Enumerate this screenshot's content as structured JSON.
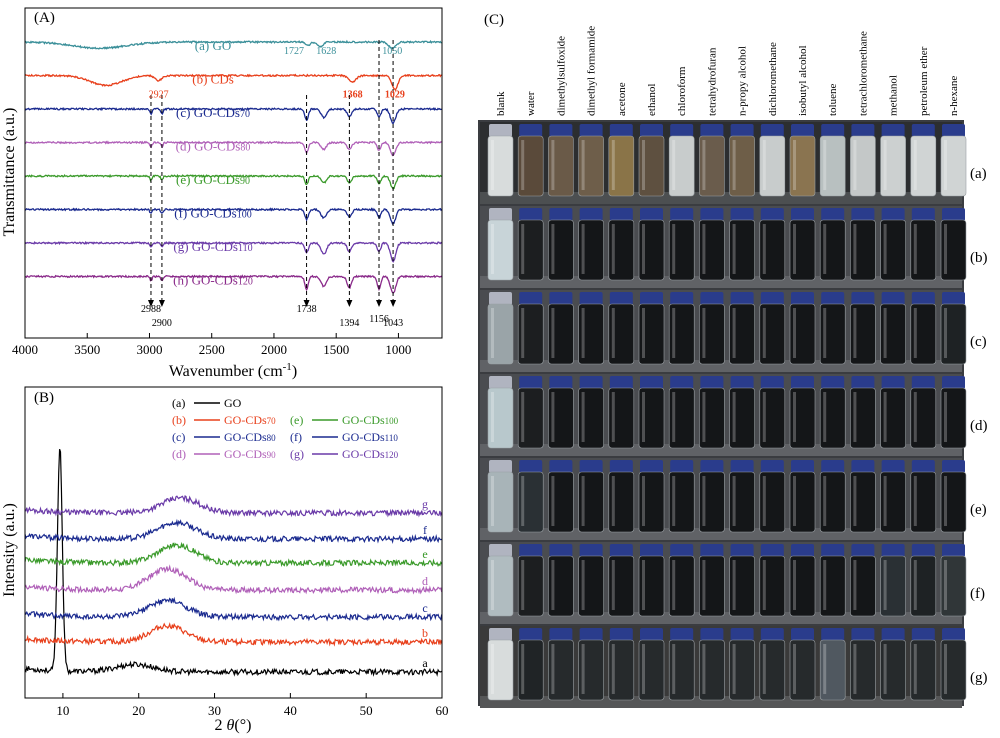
{
  "panel_labels": {
    "a": "(A)",
    "b": "(B)",
    "c": "(C)"
  },
  "chart_data": [
    {
      "type": "line",
      "panel": "(A)",
      "xlabel": "Wavenumber (cm",
      "xlabel_sup": "-1",
      "xlabel_close": ")",
      "ylabel": "Transmittance (a.u.)",
      "xlim": [
        4000,
        650
      ],
      "xticks": [
        "4000",
        "3500",
        "3000",
        "2500",
        "2000",
        "1500",
        "1000"
      ],
      "xtick_values": [
        4000,
        3500,
        3000,
        2500,
        2000,
        1500,
        1000
      ],
      "series": [
        {
          "key": "a",
          "label_prefix": "(a) GO",
          "label_sub": "",
          "color": "#3a8f99",
          "baseline_rank": 0,
          "bands": [
            {
              "wn": 3400,
              "depth": 0.45,
              "width": 300
            },
            {
              "wn": 1727,
              "depth": 0.25,
              "width": 25
            },
            {
              "wn": 1628,
              "depth": 0.35,
              "width": 30
            },
            {
              "wn": 1050,
              "depth": 0.45,
              "width": 40
            }
          ]
        },
        {
          "key": "b",
          "label_prefix": "(b) CDs",
          "label_sub": "",
          "color": "#e8401c",
          "baseline_rank": 1,
          "bands": [
            {
              "wn": 3350,
              "depth": 0.7,
              "width": 180
            },
            {
              "wn": 2927,
              "depth": 0.35,
              "width": 40
            },
            {
              "wn": 1368,
              "depth": 0.45,
              "width": 40
            },
            {
              "wn": 1029,
              "depth": 1.0,
              "width": 35
            }
          ]
        },
        {
          "key": "c",
          "label_prefix": "(c) GO-CDs",
          "label_sub": "70",
          "color": "#1a2a8f",
          "baseline_rank": 2,
          "bands": [
            {
              "wn": 2988,
              "depth": 0.35,
              "width": 12
            },
            {
              "wn": 2900,
              "depth": 0.35,
              "width": 12
            },
            {
              "wn": 1738,
              "depth": 0.8,
              "width": 20
            },
            {
              "wn": 1600,
              "depth": 0.6,
              "width": 30
            },
            {
              "wn": 1394,
              "depth": 0.55,
              "width": 25
            },
            {
              "wn": 1156,
              "depth": 0.6,
              "width": 20
            },
            {
              "wn": 1043,
              "depth": 1.0,
              "width": 30
            }
          ]
        },
        {
          "key": "d",
          "label_prefix": "(d) GO-CDs",
          "label_sub": "80",
          "color": "#b060b8",
          "baseline_rank": 3,
          "bands": [
            {
              "wn": 2988,
              "depth": 0.3,
              "width": 12
            },
            {
              "wn": 2900,
              "depth": 0.3,
              "width": 12
            },
            {
              "wn": 1738,
              "depth": 0.7,
              "width": 20
            },
            {
              "wn": 1600,
              "depth": 0.5,
              "width": 30
            },
            {
              "wn": 1394,
              "depth": 0.5,
              "width": 25
            },
            {
              "wn": 1156,
              "depth": 0.55,
              "width": 20
            },
            {
              "wn": 1043,
              "depth": 0.95,
              "width": 30
            }
          ]
        },
        {
          "key": "e",
          "label_prefix": "(e) GO-CDs",
          "label_sub": "90",
          "color": "#3a9a2a",
          "baseline_rank": 4,
          "bands": [
            {
              "wn": 2988,
              "depth": 0.3,
              "width": 12
            },
            {
              "wn": 2900,
              "depth": 0.3,
              "width": 12
            },
            {
              "wn": 1738,
              "depth": 0.6,
              "width": 20
            },
            {
              "wn": 1600,
              "depth": 0.5,
              "width": 30
            },
            {
              "wn": 1394,
              "depth": 0.5,
              "width": 25
            },
            {
              "wn": 1156,
              "depth": 0.55,
              "width": 20
            },
            {
              "wn": 1043,
              "depth": 0.9,
              "width": 30
            }
          ]
        },
        {
          "key": "f",
          "label_prefix": "(f) GO-CDs",
          "label_sub": "100",
          "color": "#1a2a8f",
          "baseline_rank": 5,
          "bands": [
            {
              "wn": 2988,
              "depth": 0.3,
              "width": 12
            },
            {
              "wn": 2900,
              "depth": 0.3,
              "width": 12
            },
            {
              "wn": 1738,
              "depth": 0.7,
              "width": 20
            },
            {
              "wn": 1600,
              "depth": 0.6,
              "width": 30
            },
            {
              "wn": 1394,
              "depth": 0.55,
              "width": 25
            },
            {
              "wn": 1156,
              "depth": 0.6,
              "width": 20
            },
            {
              "wn": 1043,
              "depth": 1.0,
              "width": 30
            }
          ]
        },
        {
          "key": "g",
          "label_prefix": "(g) GO-CDs",
          "label_sub": "110",
          "color": "#6a3aa8",
          "baseline_rank": 6,
          "bands": [
            {
              "wn": 2988,
              "depth": 0.3,
              "width": 12
            },
            {
              "wn": 2900,
              "depth": 0.3,
              "width": 12
            },
            {
              "wn": 1738,
              "depth": 0.7,
              "width": 20
            },
            {
              "wn": 1600,
              "depth": 0.8,
              "width": 30
            },
            {
              "wn": 1394,
              "depth": 0.6,
              "width": 25
            },
            {
              "wn": 1156,
              "depth": 0.6,
              "width": 20
            },
            {
              "wn": 1043,
              "depth": 1.3,
              "width": 30
            }
          ]
        },
        {
          "key": "h",
          "label_prefix": "(h) GO-CDs",
          "label_sub": "120",
          "color": "#8a2a8a",
          "baseline_rank": 7,
          "bands": [
            {
              "wn": 2988,
              "depth": 0.3,
              "width": 12
            },
            {
              "wn": 2900,
              "depth": 0.3,
              "width": 12
            },
            {
              "wn": 1738,
              "depth": 0.9,
              "width": 20
            },
            {
              "wn": 1600,
              "depth": 0.7,
              "width": 30
            },
            {
              "wn": 1394,
              "depth": 0.8,
              "width": 25
            },
            {
              "wn": 1156,
              "depth": 0.9,
              "width": 20
            },
            {
              "wn": 1043,
              "depth": 1.2,
              "width": 30
            }
          ]
        }
      ],
      "annotations": [
        {
          "text": "1727",
          "wn": 1727,
          "series": "a",
          "color": "#3a8f99",
          "bold": false
        },
        {
          "text": "1628",
          "wn": 1628,
          "series": "a",
          "color": "#3a8f99",
          "bold": false
        },
        {
          "text": "1050",
          "wn": 1050,
          "series": "a",
          "color": "#3a8f99",
          "bold": false
        },
        {
          "text": "2927",
          "wn": 2927,
          "series": "b",
          "color": "#e8401c",
          "bold": false
        },
        {
          "text": "1368",
          "wn": 1368,
          "series": "b",
          "color": "#e8401c",
          "bold": true
        },
        {
          "text": "1029",
          "wn": 1029,
          "series": "b",
          "color": "#e8401c",
          "bold": true
        },
        {
          "text": "2988",
          "wn": 2988,
          "series": "h",
          "color": "#000000",
          "bold": false
        },
        {
          "text": "2900",
          "wn": 2900,
          "series": "h",
          "color": "#000000",
          "bold": false
        },
        {
          "text": "1738",
          "wn": 1738,
          "series": "h",
          "color": "#000000",
          "bold": false
        },
        {
          "text": "1394",
          "wn": 1394,
          "series": "h",
          "color": "#000000",
          "bold": false
        },
        {
          "text": "1156",
          "wn": 1156,
          "series": "h",
          "color": "#000000",
          "bold": false
        },
        {
          "text": "1043",
          "wn": 1043,
          "series": "h",
          "color": "#000000",
          "bold": false
        }
      ],
      "guide_lines": [
        2988,
        2900,
        1738,
        1394,
        1156,
        1043
      ]
    },
    {
      "type": "line",
      "panel": "(B)",
      "xlabel_prefix": "2 ",
      "xlabel_theta": "θ",
      "xlabel_suffix": "(°)",
      "ylabel": "Intensity (a.u.)",
      "xlim": [
        5,
        60
      ],
      "xticks": [
        "10",
        "20",
        "30",
        "40",
        "50",
        "60"
      ],
      "xtick_values": [
        10,
        20,
        30,
        40,
        50,
        60
      ],
      "series": [
        {
          "key": "a",
          "legend_prefix": "(a)",
          "legend_name": "GO",
          "legend_sub": "",
          "side_label": "a",
          "color": "#000000",
          "peak": {
            "x": 9.6,
            "height": 7.5,
            "width": 0.45
          },
          "broad": {
            "x": 19.5,
            "height": 0.25,
            "width": 3.5
          }
        },
        {
          "key": "b",
          "legend_prefix": "(b)",
          "legend_name": "GO-CDs",
          "legend_sub": "70",
          "side_label": "b",
          "color": "#e8401c",
          "broad": {
            "x": 23.8,
            "height": 0.55,
            "width": 3.2
          }
        },
        {
          "key": "c",
          "legend_prefix": "(c)",
          "legend_name": "GO-CDs",
          "legend_sub": "80",
          "side_label": "c",
          "color": "#1a2a8f",
          "broad": {
            "x": 23.8,
            "height": 0.55,
            "width": 3.5
          }
        },
        {
          "key": "d",
          "legend_prefix": "(d)",
          "legend_name": "GO-CDs",
          "legend_sub": "90",
          "side_label": "d",
          "color": "#b060b8",
          "broad": {
            "x": 23.8,
            "height": 0.7,
            "width": 3.5
          }
        },
        {
          "key": "e",
          "legend_prefix": "(e)",
          "legend_name": "GO-CDs",
          "legend_sub": "100",
          "side_label": "e",
          "color": "#3a9a2a",
          "broad": {
            "x": 25.0,
            "height": 0.6,
            "width": 3.5
          }
        },
        {
          "key": "f",
          "legend_prefix": "(f)",
          "legend_name": "GO-CDs",
          "legend_sub": "110",
          "side_label": "f",
          "color": "#1a2a8f",
          "broad": {
            "x": 25.0,
            "height": 0.55,
            "width": 3.5
          }
        },
        {
          "key": "g",
          "legend_prefix": "(g)",
          "legend_name": "GO-CDs",
          "legend_sub": "120",
          "side_label": "g",
          "color": "#6a3aa8",
          "broad": {
            "x": 25.5,
            "height": 0.5,
            "width": 3.5
          }
        }
      ]
    }
  ],
  "photo_panel": {
    "label": "(C)",
    "solvents": [
      "blank",
      "water",
      "dimethylsulfoxide",
      "dimethyl formamide",
      "acetone",
      "ethanol",
      "chloroform",
      "tetrahydrofuran",
      "n-propy alcohol",
      "dichloromethane",
      "isobutyl alcohol",
      "toluene",
      "tetrachloromethane",
      "methanol",
      "petroleum ether",
      "n-hexane"
    ],
    "rows": [
      {
        "label": "(a)",
        "liquid": [
          "#d8dcdc",
          "#5a4a3a",
          "#6a5a48",
          "#6e5e4a",
          "#8a7448",
          "#5e5040",
          "#c8cccc",
          "#6a5c4c",
          "#6e5e48",
          "#c8cccc",
          "#8a7450",
          "#b8c0c0",
          "#c4c8c8",
          "#ccd0d0",
          "#d0d4d4",
          "#d0d4d4"
        ]
      },
      {
        "label": "(b)",
        "liquid": [
          "#c8d4d8",
          "#1c1e20",
          "#141618",
          "#141618",
          "#141618",
          "#141618",
          "#141618",
          "#141618",
          "#141618",
          "#141618",
          "#141618",
          "#141618",
          "#141618",
          "#141618",
          "#141618",
          "#141618"
        ]
      },
      {
        "label": "(c)",
        "liquid": [
          "#9aa4a8",
          "#1c1e20",
          "#141618",
          "#141618",
          "#141618",
          "#141618",
          "#141618",
          "#141618",
          "#141618",
          "#141618",
          "#141618",
          "#141618",
          "#141618",
          "#141618",
          "#141618",
          "#1e2224"
        ]
      },
      {
        "label": "(d)",
        "liquid": [
          "#b8c8cc",
          "#1c1e20",
          "#141618",
          "#141618",
          "#141618",
          "#141618",
          "#141618",
          "#141618",
          "#141618",
          "#141618",
          "#141618",
          "#141618",
          "#141618",
          "#141618",
          "#141618",
          "#141618"
        ]
      },
      {
        "label": "(e)",
        "liquid": [
          "#a8b4b8",
          "#2a3034",
          "#141618",
          "#141618",
          "#141618",
          "#141618",
          "#141618",
          "#141618",
          "#141618",
          "#141618",
          "#141618",
          "#141618",
          "#141618",
          "#141618",
          "#141618",
          "#141618"
        ]
      },
      {
        "label": "(f)",
        "liquid": [
          "#b0bcc0",
          "#1c1e20",
          "#141618",
          "#141618",
          "#141618",
          "#141618",
          "#141618",
          "#141618",
          "#141618",
          "#141618",
          "#141618",
          "#141618",
          "#141618",
          "#2a3034",
          "#1e2224",
          "#303638"
        ]
      },
      {
        "label": "(g)",
        "liquid": [
          "#d8dcdc",
          "#202426",
          "#262a2c",
          "#262a2c",
          "#262a2c",
          "#262a2c",
          "#262a2c",
          "#262a2c",
          "#262a2c",
          "#262a2c",
          "#262a2c",
          "#505860",
          "#262a2c",
          "#262a2c",
          "#262a2c",
          "#262a2c"
        ]
      }
    ]
  }
}
